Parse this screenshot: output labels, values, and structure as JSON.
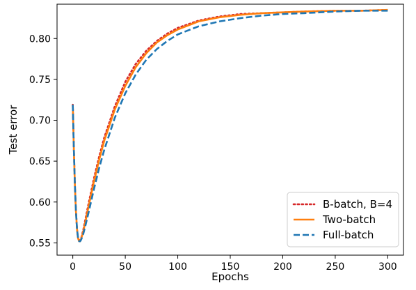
{
  "chart_data": {
    "type": "line",
    "xlabel": "Epochs",
    "ylabel": "Test error",
    "xlim": [
      -15,
      315
    ],
    "ylim": [
      0.535,
      0.842
    ],
    "xticks": [
      0,
      50,
      100,
      150,
      200,
      250,
      300
    ],
    "xtick_labels": [
      "0",
      "50",
      "100",
      "150",
      "200",
      "250",
      "300"
    ],
    "yticks": [
      0.55,
      0.6,
      0.65,
      0.7,
      0.75,
      0.8
    ],
    "ytick_labels": [
      "0.55",
      "0.60",
      "0.65",
      "0.70",
      "0.75",
      "0.80"
    ],
    "grid": false,
    "legend_position": "lower-right",
    "series": [
      {
        "name": "B-batch, B=4",
        "color": "#d62728",
        "style": "dotted",
        "x": [
          0,
          1,
          2,
          3,
          4,
          5,
          6,
          7,
          8,
          10,
          12,
          15,
          20,
          25,
          30,
          40,
          50,
          60,
          70,
          80,
          90,
          100,
          120,
          140,
          160,
          180,
          200,
          220,
          250,
          275,
          300
        ],
        "y": [
          0.719,
          0.665,
          0.621,
          0.589,
          0.567,
          0.556,
          0.552,
          0.553,
          0.556,
          0.566,
          0.579,
          0.598,
          0.628,
          0.655,
          0.679,
          0.717,
          0.747,
          0.769,
          0.785,
          0.797,
          0.806,
          0.813,
          0.822,
          0.827,
          0.83,
          0.831,
          0.832,
          0.833,
          0.834,
          0.834,
          0.835
        ]
      },
      {
        "name": "Two-batch",
        "color": "#ff7f0e",
        "style": "solid",
        "x": [
          0,
          1,
          2,
          3,
          4,
          5,
          6,
          7,
          8,
          10,
          12,
          15,
          20,
          25,
          30,
          40,
          50,
          60,
          70,
          80,
          90,
          100,
          120,
          140,
          160,
          180,
          200,
          220,
          250,
          275,
          300
        ],
        "y": [
          0.719,
          0.665,
          0.621,
          0.589,
          0.567,
          0.556,
          0.552,
          0.552,
          0.555,
          0.564,
          0.576,
          0.594,
          0.624,
          0.651,
          0.675,
          0.713,
          0.742,
          0.765,
          0.782,
          0.795,
          0.804,
          0.811,
          0.821,
          0.826,
          0.829,
          0.831,
          0.832,
          0.833,
          0.834,
          0.834,
          0.835
        ]
      },
      {
        "name": "Full-batch",
        "color": "#1f77b4",
        "style": "dashed",
        "x": [
          0,
          1,
          2,
          3,
          4,
          5,
          6,
          7,
          8,
          10,
          12,
          15,
          20,
          25,
          30,
          40,
          50,
          60,
          70,
          80,
          90,
          100,
          120,
          140,
          160,
          180,
          200,
          220,
          250,
          275,
          300
        ],
        "y": [
          0.719,
          0.665,
          0.621,
          0.589,
          0.567,
          0.556,
          0.552,
          0.552,
          0.554,
          0.561,
          0.571,
          0.587,
          0.615,
          0.641,
          0.664,
          0.703,
          0.733,
          0.756,
          0.774,
          0.787,
          0.797,
          0.805,
          0.815,
          0.821,
          0.825,
          0.828,
          0.83,
          0.831,
          0.833,
          0.834,
          0.834
        ]
      }
    ]
  }
}
